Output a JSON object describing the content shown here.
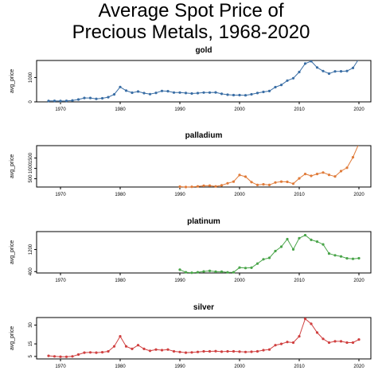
{
  "title": "Average Spot Price of\nPrecious Metals, 1968-2020",
  "chart_data": [
    {
      "type": "line",
      "title": "gold",
      "xlabel": "",
      "ylabel": "avg_price",
      "xlim": [
        1966,
        2022
      ],
      "ylim": [
        0,
        1700
      ],
      "xticks": [
        1970,
        1980,
        1990,
        2000,
        2010,
        2020
      ],
      "yticks": [
        0,
        1000
      ],
      "color": "#3a6ea5",
      "x": [
        1968,
        1969,
        1970,
        1971,
        1972,
        1973,
        1974,
        1975,
        1976,
        1977,
        1978,
        1979,
        1980,
        1981,
        1982,
        1983,
        1984,
        1985,
        1986,
        1987,
        1988,
        1989,
        1990,
        1991,
        1992,
        1993,
        1994,
        1995,
        1996,
        1997,
        1998,
        1999,
        2000,
        2001,
        2002,
        2003,
        2004,
        2005,
        2006,
        2007,
        2008,
        2009,
        2010,
        2011,
        2012,
        2013,
        2014,
        2015,
        2016,
        2017,
        2018,
        2019,
        2020
      ],
      "y": [
        39,
        41,
        36,
        41,
        58,
        97,
        159,
        161,
        125,
        148,
        193,
        306,
        612,
        460,
        376,
        424,
        361,
        317,
        368,
        447,
        437,
        381,
        384,
        362,
        344,
        360,
        384,
        384,
        388,
        331,
        294,
        279,
        279,
        271,
        310,
        363,
        409,
        445,
        604,
        696,
        872,
        972,
        1225,
        1572,
        1669,
        1411,
        1266,
        1160,
        1251,
        1257,
        1268,
        1393,
        1770
      ]
    },
    {
      "type": "line",
      "title": "palladium",
      "xlabel": "",
      "ylabel": "avg_price",
      "xlim": [
        1966,
        2022
      ],
      "ylim": [
        100,
        2100
      ],
      "xticks": [
        1970,
        1980,
        1990,
        2000,
        2010,
        2020
      ],
      "yticks": [
        500,
        1000,
        1500
      ],
      "color": "#e07b39",
      "x": [
        1990,
        1991,
        1992,
        1993,
        1994,
        1995,
        1996,
        1997,
        1998,
        1999,
        2000,
        2001,
        2002,
        2003,
        2004,
        2005,
        2006,
        2007,
        2008,
        2009,
        2010,
        2011,
        2012,
        2013,
        2014,
        2015,
        2016,
        2017,
        2018,
        2019,
        2020
      ],
      "y": [
        120,
        100,
        110,
        130,
        160,
        170,
        130,
        180,
        280,
        360,
        680,
        600,
        340,
        200,
        230,
        200,
        320,
        360,
        350,
        260,
        520,
        730,
        640,
        730,
        800,
        690,
        610,
        870,
        1030,
        1540,
        2200
      ]
    },
    {
      "type": "line",
      "title": "platinum",
      "xlabel": "",
      "ylabel": "avg_price",
      "xlim": [
        1966,
        2022
      ],
      "ylim": [
        350,
        1850
      ],
      "xticks": [
        1970,
        1980,
        1990,
        2000,
        2010,
        2020
      ],
      "yticks": [
        400,
        1200
      ],
      "color": "#4aa54a",
      "x": [
        1990,
        1991,
        1992,
        1993,
        1994,
        1995,
        1996,
        1997,
        1998,
        1999,
        2000,
        2001,
        2002,
        2003,
        2004,
        2005,
        2006,
        2007,
        2008,
        2009,
        2010,
        2011,
        2012,
        2013,
        2014,
        2015,
        2016,
        2017,
        2018,
        2019,
        2020
      ],
      "y": [
        467,
        375,
        360,
        375,
        405,
        424,
        397,
        395,
        372,
        377,
        545,
        529,
        539,
        691,
        845,
        897,
        1142,
        1303,
        1576,
        1204,
        1611,
        1720,
        1551,
        1487,
        1385,
        1053,
        989,
        949,
        880,
        864,
        885
      ]
    },
    {
      "type": "line",
      "title": "silver",
      "xlabel": "",
      "ylabel": "avg_price",
      "xlim": [
        1966,
        2022
      ],
      "ylim": [
        3,
        36
      ],
      "xticks": [
        1970,
        1980,
        1990,
        2000,
        2010,
        2020
      ],
      "yticks": [
        5,
        15,
        30
      ],
      "color": "#d04040",
      "x": [
        1968,
        1969,
        1970,
        1971,
        1972,
        1973,
        1974,
        1975,
        1976,
        1977,
        1978,
        1979,
        1980,
        1981,
        1982,
        1983,
        1984,
        1985,
        1986,
        1987,
        1988,
        1989,
        1990,
        1991,
        1992,
        1993,
        1994,
        1995,
        1996,
        1997,
        1998,
        1999,
        2000,
        2001,
        2002,
        2003,
        2004,
        2005,
        2006,
        2007,
        2008,
        2009,
        2010,
        2011,
        2012,
        2013,
        2014,
        2015,
        2016,
        2017,
        2018,
        2019,
        2020
      ],
      "y": [
        5.5,
        5.0,
        4.8,
        4.7,
        5.0,
        6.5,
        8.0,
        8.2,
        8.0,
        8.3,
        9.0,
        13.0,
        21.0,
        13.0,
        11.0,
        14.0,
        11.0,
        9.5,
        10.5,
        10.0,
        10.5,
        9.0,
        8.5,
        8.0,
        8.2,
        8.6,
        9.0,
        9.0,
        9.2,
        8.8,
        9.0,
        9.0,
        8.8,
        8.5,
        8.7,
        9.0,
        10.0,
        10.5,
        14.0,
        15.0,
        16.5,
        16.0,
        21.0,
        35.0,
        31.0,
        24.0,
        19.0,
        16.0,
        17.0,
        17.0,
        16.0,
        16.0,
        18.5
      ]
    }
  ]
}
